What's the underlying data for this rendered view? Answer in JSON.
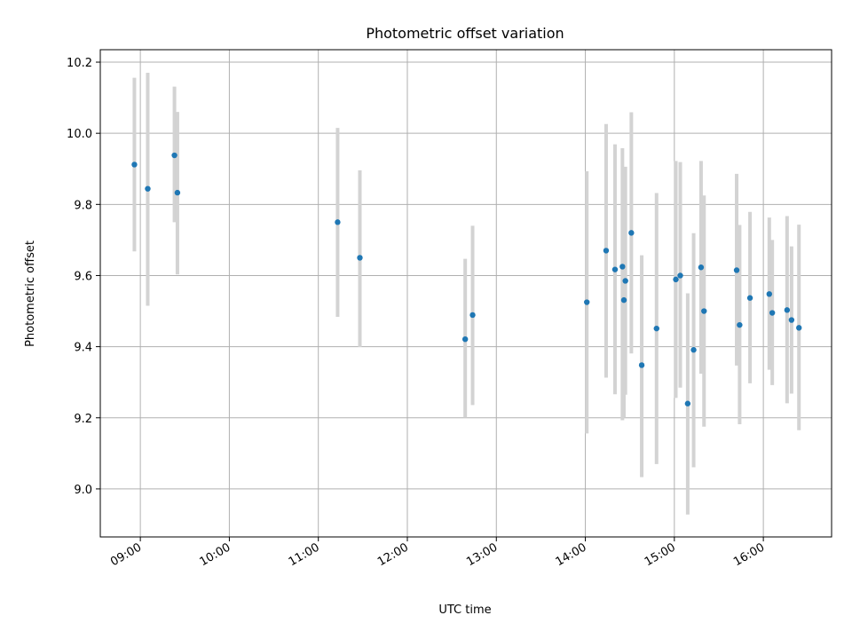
{
  "chart_data": {
    "type": "scatter",
    "title": "Photometric offset variation",
    "xlabel": "UTC time",
    "ylabel": "Photometric offset",
    "xlim": [
      "08:33",
      "16:46"
    ],
    "ylim": [
      8.865,
      10.235
    ],
    "x_ticks": [
      "09:00",
      "10:00",
      "11:00",
      "12:00",
      "13:00",
      "14:00",
      "15:00",
      "16:00"
    ],
    "y_ticks": [
      9.0,
      9.2,
      9.4,
      9.6,
      9.8,
      10.0,
      10.2
    ],
    "grid": true,
    "marker_color": "#1f77b4",
    "errorbar_color": "#d3d3d3",
    "points": [
      {
        "x": "08:56",
        "y": 9.912,
        "lo": 9.668,
        "hi": 10.156
      },
      {
        "x": "09:05",
        "y": 9.844,
        "lo": 9.515,
        "hi": 10.17
      },
      {
        "x": "09:23",
        "y": 9.938,
        "lo": 9.75,
        "hi": 10.131
      },
      {
        "x": "09:25",
        "y": 9.833,
        "lo": 9.603,
        "hi": 10.06
      },
      {
        "x": "11:13",
        "y": 9.75,
        "lo": 9.484,
        "hi": 10.015
      },
      {
        "x": "11:28",
        "y": 9.65,
        "lo": 9.399,
        "hi": 9.896
      },
      {
        "x": "12:39",
        "y": 9.421,
        "lo": 9.2,
        "hi": 9.647
      },
      {
        "x": "12:44",
        "y": 9.489,
        "lo": 9.236,
        "hi": 9.74
      },
      {
        "x": "14:01",
        "y": 9.525,
        "lo": 9.156,
        "hi": 9.893
      },
      {
        "x": "14:14",
        "y": 9.67,
        "lo": 9.313,
        "hi": 10.026
      },
      {
        "x": "14:20",
        "y": 9.617,
        "lo": 9.266,
        "hi": 9.969
      },
      {
        "x": "14:25",
        "y": 9.625,
        "lo": 9.193,
        "hi": 9.958
      },
      {
        "x": "14:26",
        "y": 9.531,
        "lo": 9.2,
        "hi": 9.868
      },
      {
        "x": "14:27",
        "y": 9.585,
        "lo": 9.265,
        "hi": 9.906
      },
      {
        "x": "14:31",
        "y": 9.72,
        "lo": 9.381,
        "hi": 10.059
      },
      {
        "x": "14:38",
        "y": 9.348,
        "lo": 9.033,
        "hi": 9.657
      },
      {
        "x": "14:48",
        "y": 9.451,
        "lo": 9.07,
        "hi": 9.832
      },
      {
        "x": "15:01",
        "y": 9.589,
        "lo": 9.256,
        "hi": 9.922
      },
      {
        "x": "15:04",
        "y": 9.6,
        "lo": 9.285,
        "hi": 9.919
      },
      {
        "x": "15:09",
        "y": 9.24,
        "lo": 8.928,
        "hi": 9.55
      },
      {
        "x": "15:13",
        "y": 9.391,
        "lo": 9.061,
        "hi": 9.719
      },
      {
        "x": "15:18",
        "y": 9.623,
        "lo": 9.324,
        "hi": 9.922
      },
      {
        "x": "15:20",
        "y": 9.5,
        "lo": 9.175,
        "hi": 9.825
      },
      {
        "x": "15:42",
        "y": 9.615,
        "lo": 9.347,
        "hi": 9.886
      },
      {
        "x": "15:44",
        "y": 9.461,
        "lo": 9.182,
        "hi": 9.742
      },
      {
        "x": "15:51",
        "y": 9.537,
        "lo": 9.297,
        "hi": 9.779
      },
      {
        "x": "16:04",
        "y": 9.548,
        "lo": 9.335,
        "hi": 9.763
      },
      {
        "x": "16:06",
        "y": 9.495,
        "lo": 9.292,
        "hi": 9.7
      },
      {
        "x": "16:16",
        "y": 9.503,
        "lo": 9.241,
        "hi": 9.767
      },
      {
        "x": "16:19",
        "y": 9.475,
        "lo": 9.268,
        "hi": 9.682
      },
      {
        "x": "16:24",
        "y": 9.453,
        "lo": 9.165,
        "hi": 9.743
      }
    ]
  }
}
